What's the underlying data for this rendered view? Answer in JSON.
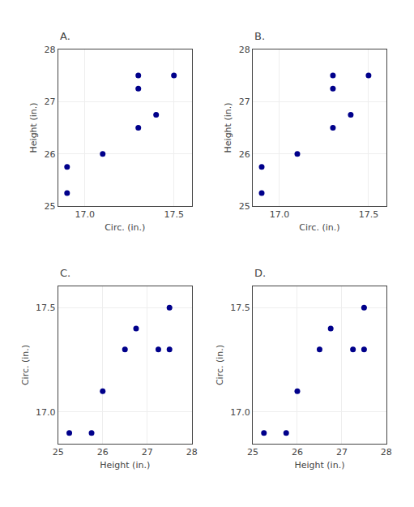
{
  "chart_data": [
    {
      "type": "scatter",
      "title": "A.",
      "xlabel": "Circ. (in.)",
      "ylabel": "Height (in.)",
      "x": [
        17.3,
        16.9,
        17.3,
        16.9,
        17.5,
        17.4,
        17.1,
        17.3
      ],
      "values": [
        27.5,
        25.75,
        26.5,
        25.25,
        27.5,
        26.75,
        26,
        27.25
      ],
      "color": "#00008B",
      "xlim": [
        16.85,
        17.6
      ],
      "ylim": [
        25.0,
        28.0
      ],
      "xticks": [
        {
          "value": 17,
          "label": "17.0"
        },
        17.5
      ],
      "yticks": [
        25,
        26,
        27,
        28
      ],
      "grid": true
    },
    {
      "type": "scatter",
      "title": "B.",
      "xlabel": "Circ. (in.)",
      "ylabel": "Height (in.)",
      "x": [
        17.3,
        16.9,
        17.3,
        16.9,
        17.5,
        17.4,
        17.1,
        17.3
      ],
      "values": [
        27.5,
        25.75,
        26.5,
        25.25,
        27.5,
        26.75,
        26,
        27.25
      ],
      "color": "#00008B",
      "xlim": [
        16.85,
        17.6
      ],
      "ylim": [
        25.0,
        28.0
      ],
      "xticks": [
        {
          "value": 17,
          "label": "17.0"
        },
        17.5
      ],
      "yticks": [
        25,
        26,
        27,
        28
      ],
      "grid": true
    },
    {
      "type": "scatter",
      "title": "C.",
      "xlabel": "Height (in.)",
      "ylabel": "Circ. (in.)",
      "x": [
        27.5,
        25.75,
        26.5,
        25.25,
        27.5,
        26.75,
        26,
        27.25
      ],
      "values": [
        17.3,
        16.9,
        17.3,
        16.9,
        17.5,
        17.4,
        17.1,
        17.3
      ],
      "color": "#00008B",
      "xlim": [
        25.0,
        28.0
      ],
      "ylim": [
        16.85,
        17.6
      ],
      "xticks": [
        25,
        26,
        27,
        28
      ],
      "yticks": [
        {
          "value": 17,
          "label": "17.0"
        },
        17.5
      ],
      "grid": true
    },
    {
      "type": "scatter",
      "title": "D.",
      "xlabel": "Height (in.)",
      "ylabel": "Circ. (in.)",
      "x": [
        27.5,
        25.75,
        26.5,
        25.25,
        27.5,
        26.75,
        26,
        27.25
      ],
      "values": [
        17.3,
        16.9,
        17.3,
        16.9,
        17.5,
        17.4,
        17.1,
        17.3
      ],
      "color": "#00008B",
      "xlim": [
        25.0,
        28.0
      ],
      "ylim": [
        16.85,
        17.6
      ],
      "xticks": [
        25,
        26,
        27,
        28
      ],
      "yticks": [
        {
          "value": 17,
          "label": "17.0"
        },
        17.5
      ],
      "grid": true
    }
  ]
}
